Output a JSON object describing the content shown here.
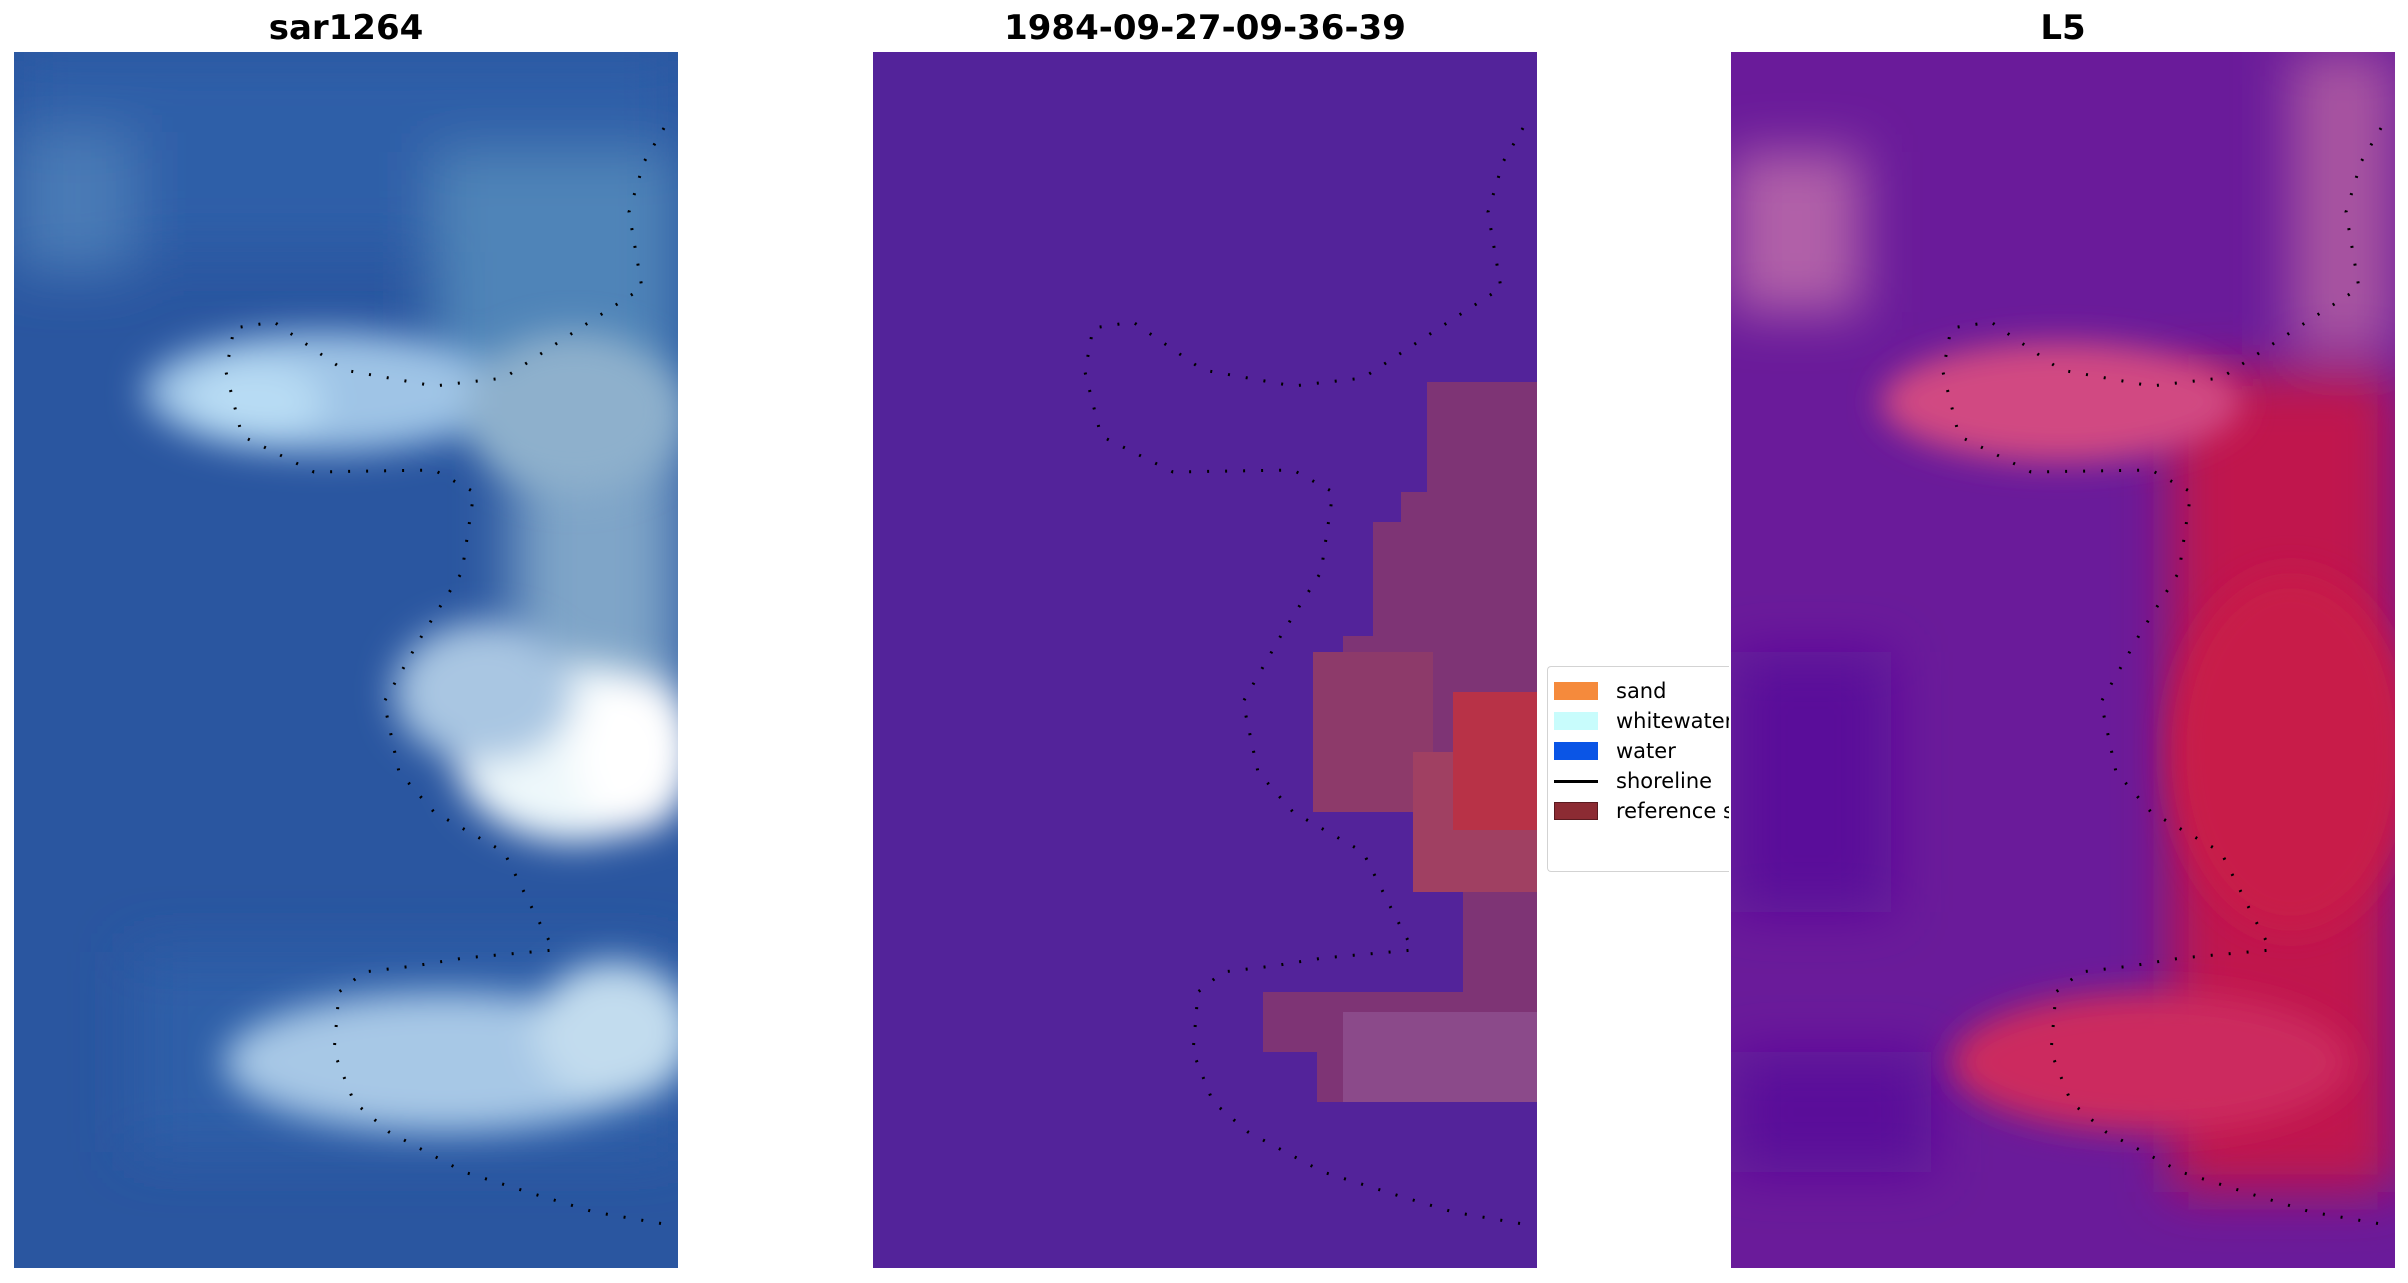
{
  "panels": [
    {
      "title": "sar1264"
    },
    {
      "title": "1984-09-27-09-36-39"
    },
    {
      "title": "L5"
    }
  ],
  "legend": {
    "items": [
      {
        "label": "sand",
        "color": "#f58a3c",
        "kind": "patch"
      },
      {
        "label": "whitewater",
        "color": "#c8fcfc",
        "kind": "patch"
      },
      {
        "label": "water",
        "color": "#0a55e6",
        "kind": "patch"
      },
      {
        "label": "shoreline",
        "color": "#000000",
        "kind": "line"
      },
      {
        "label": "reference s",
        "color": "#8c2b33",
        "kind": "patch"
      }
    ]
  }
}
